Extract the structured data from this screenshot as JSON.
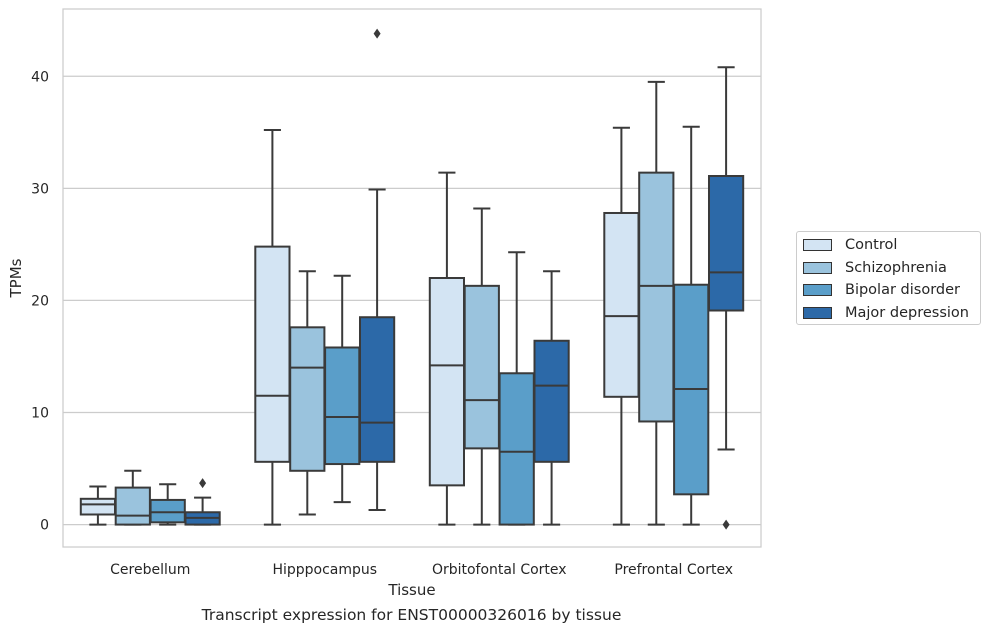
{
  "chart_data": {
    "type": "box",
    "title": "",
    "xlabel": "Tissue",
    "ylabel": "TPMs",
    "ylim": [
      -2,
      46
    ],
    "yticks": [
      0,
      10,
      20,
      30,
      40
    ],
    "grid": "horizontal",
    "legend_position": "right",
    "categories": [
      "Cerebellum",
      "Hipppocampus",
      "Orbitofontal Cortex",
      "Prefrontal Cortex"
    ],
    "caption": "Transcript expression for ENST00000326016 by tissue",
    "series": [
      {
        "name": "Control",
        "color": "#d3e4f3",
        "boxes": [
          {
            "whisker_low": 0,
            "q1": 0.9,
            "median": 1.8,
            "q3": 2.3,
            "whisker_high": 3.4,
            "outliers": []
          },
          {
            "whisker_low": 0,
            "q1": 5.6,
            "median": 11.5,
            "q3": 24.8,
            "whisker_high": 35.2,
            "outliers": []
          },
          {
            "whisker_low": 0,
            "q1": 3.5,
            "median": 14.2,
            "q3": 22.0,
            "whisker_high": 31.4,
            "outliers": []
          },
          {
            "whisker_low": 0,
            "q1": 11.4,
            "median": 18.6,
            "q3": 27.8,
            "whisker_high": 35.4,
            "outliers": []
          }
        ]
      },
      {
        "name": "Schizophrenia",
        "color": "#9ac3dd",
        "boxes": [
          {
            "whisker_low": 0,
            "q1": 0,
            "median": 0.8,
            "q3": 3.3,
            "whisker_high": 4.8,
            "outliers": []
          },
          {
            "whisker_low": 0.9,
            "q1": 4.8,
            "median": 14.0,
            "q3": 17.6,
            "whisker_high": 22.6,
            "outliers": []
          },
          {
            "whisker_low": 0,
            "q1": 6.8,
            "median": 11.1,
            "q3": 21.3,
            "whisker_high": 28.2,
            "outliers": []
          },
          {
            "whisker_low": 0,
            "q1": 9.2,
            "median": 21.3,
            "q3": 31.4,
            "whisker_high": 39.5,
            "outliers": []
          }
        ]
      },
      {
        "name": "Bipolar disorder",
        "color": "#5a9ec9",
        "boxes": [
          {
            "whisker_low": 0,
            "q1": 0.2,
            "median": 1.1,
            "q3": 2.2,
            "whisker_high": 3.6,
            "outliers": []
          },
          {
            "whisker_low": 2.0,
            "q1": 5.4,
            "median": 9.6,
            "q3": 15.8,
            "whisker_high": 22.2,
            "outliers": []
          },
          {
            "whisker_low": 0,
            "q1": 0,
            "median": 6.5,
            "q3": 13.5,
            "whisker_high": 24.3,
            "outliers": []
          },
          {
            "whisker_low": 0,
            "q1": 2.7,
            "median": 12.1,
            "q3": 21.4,
            "whisker_high": 35.5,
            "outliers": []
          }
        ]
      },
      {
        "name": "Major depression",
        "color": "#2c69a8",
        "boxes": [
          {
            "whisker_low": 0,
            "q1": 0,
            "median": 0.6,
            "q3": 1.1,
            "whisker_high": 2.4,
            "outliers": [
              3.7
            ]
          },
          {
            "whisker_low": 1.3,
            "q1": 5.6,
            "median": 9.1,
            "q3": 18.5,
            "whisker_high": 29.9,
            "outliers": [
              43.8
            ]
          },
          {
            "whisker_low": 0,
            "q1": 5.6,
            "median": 12.4,
            "q3": 16.4,
            "whisker_high": 22.6,
            "outliers": []
          },
          {
            "whisker_low": 6.7,
            "q1": 19.1,
            "median": 22.5,
            "q3": 31.1,
            "whisker_high": 40.8,
            "outliers": [
              0
            ]
          }
        ]
      }
    ]
  }
}
